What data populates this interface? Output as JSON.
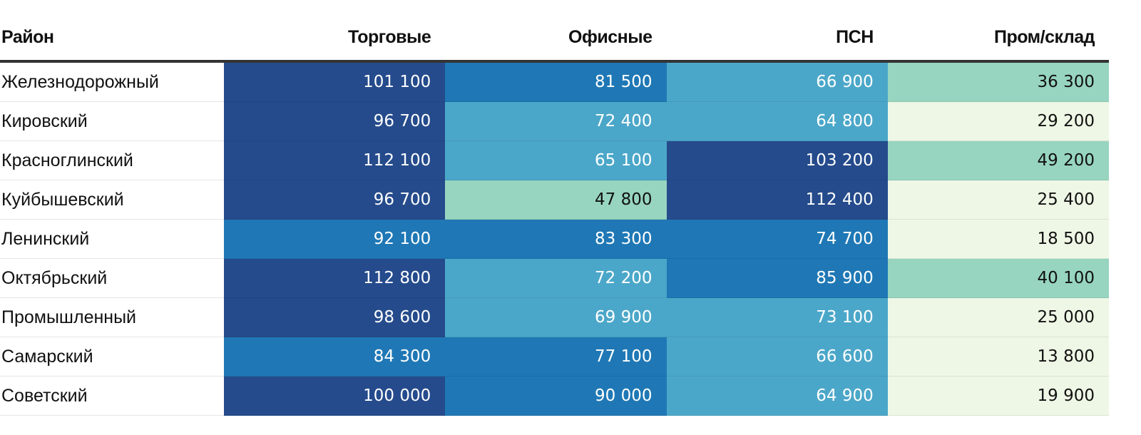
{
  "chart_data": {
    "type": "heatmap",
    "columns": [
      "Район",
      "Торговые",
      "Офисные",
      "ПСН",
      "Пром/склад"
    ],
    "rows": [
      {
        "name": "Железнодорожный",
        "values": [
          101100,
          81500,
          66900,
          36300
        ]
      },
      {
        "name": "Кировский",
        "values": [
          96700,
          72400,
          64800,
          29200
        ]
      },
      {
        "name": "Красноглинский",
        "values": [
          112100,
          65100,
          103200,
          49200
        ]
      },
      {
        "name": "Куйбышевский",
        "values": [
          96700,
          47800,
          112400,
          25400
        ]
      },
      {
        "name": "Ленинский",
        "values": [
          92100,
          83300,
          74700,
          18500
        ]
      },
      {
        "name": "Октябрьский",
        "values": [
          112800,
          72200,
          85900,
          40100
        ]
      },
      {
        "name": "Промышленный",
        "values": [
          98600,
          69900,
          73100,
          25000
        ]
      },
      {
        "name": "Самарский",
        "values": [
          84300,
          77100,
          66600,
          13800
        ]
      },
      {
        "name": "Советский",
        "values": [
          100000,
          90000,
          64900,
          19900
        ]
      }
    ],
    "color_scale": [
      {
        "max": 30000,
        "color": "#eef7e5",
        "text": "#111111"
      },
      {
        "max": 50000,
        "color": "#97d5c0",
        "text": "#111111"
      },
      {
        "max": 74000,
        "color": "#4ba7c9",
        "text": "#ffffff"
      },
      {
        "max": 95000,
        "color": "#1f78b5",
        "text": "#ffffff"
      },
      {
        "max": 1000000,
        "color": "#254b8c",
        "text": "#ffffff"
      }
    ]
  }
}
